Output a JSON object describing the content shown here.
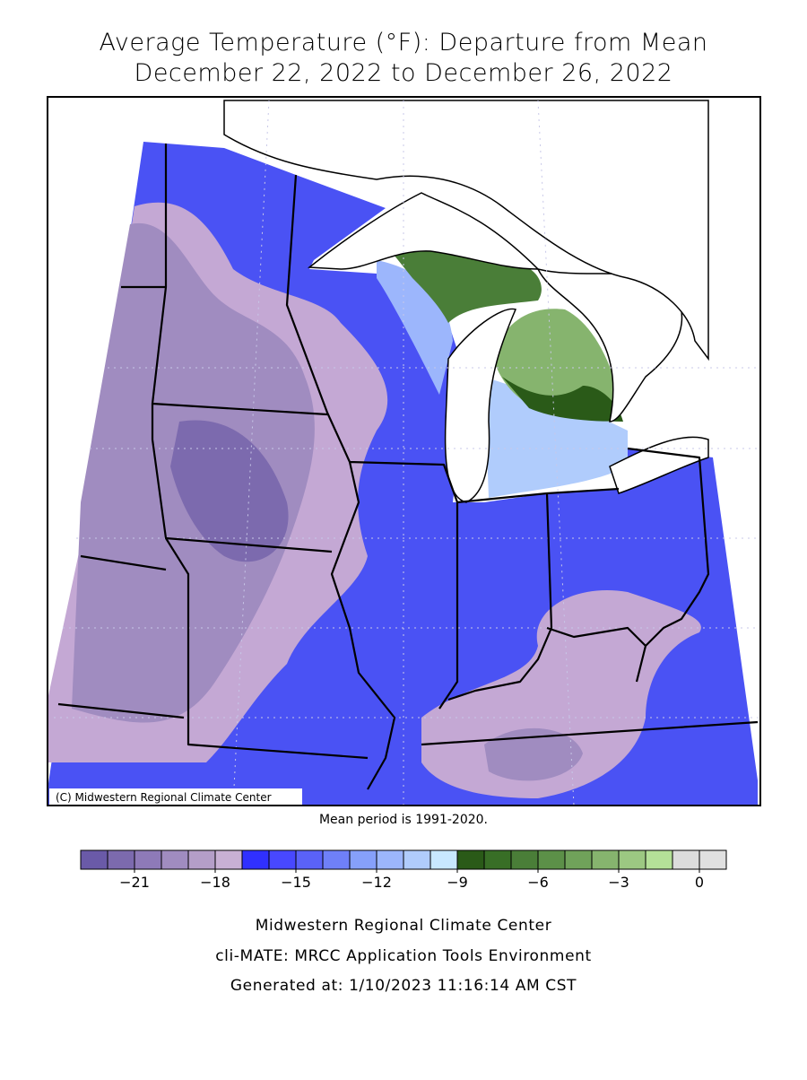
{
  "title_lines": [
    "Average Temperature (°F): Departure from Mean",
    "December 22, 2022 to December 26, 2022"
  ],
  "copyright": "(C) Midwestern Regional Climate Center",
  "mean_period": "Mean period is 1991-2020.",
  "legend": {
    "lim": [
      -23,
      1
    ],
    "colors": [
      "#6a5aa8",
      "#7c6aae",
      "#8e7ab8",
      "#a08cc0",
      "#b49ec8",
      "#c8b0d4",
      "#3030ff",
      "#4848ff",
      "#5a62f8",
      "#6f80f8",
      "#86a0fa",
      "#9cb6fc",
      "#b0ccfc",
      "#c8e8ff",
      "#2a5a18",
      "#386e26",
      "#4a7e38",
      "#5c9048",
      "#70a25a",
      "#86b46e",
      "#9cc882",
      "#b4e098",
      "#dcdcdc",
      "#e0e0e0"
    ],
    "ticks": [
      {
        "value": -21,
        "label": "−21"
      },
      {
        "value": -18,
        "label": "−18"
      },
      {
        "value": -15,
        "label": "−15"
      },
      {
        "value": -12,
        "label": "−12"
      },
      {
        "value": -9,
        "label": "−9"
      },
      {
        "value": -6,
        "label": "−6"
      },
      {
        "value": -3,
        "label": "−3"
      },
      0
    ]
  },
  "footer_lines": [
    "Midwestern Regional Climate Center",
    "cli-MATE: MRCC Application Tools Environment",
    "Generated at: 1/10/2023 11:16:14 AM CST"
  ]
}
